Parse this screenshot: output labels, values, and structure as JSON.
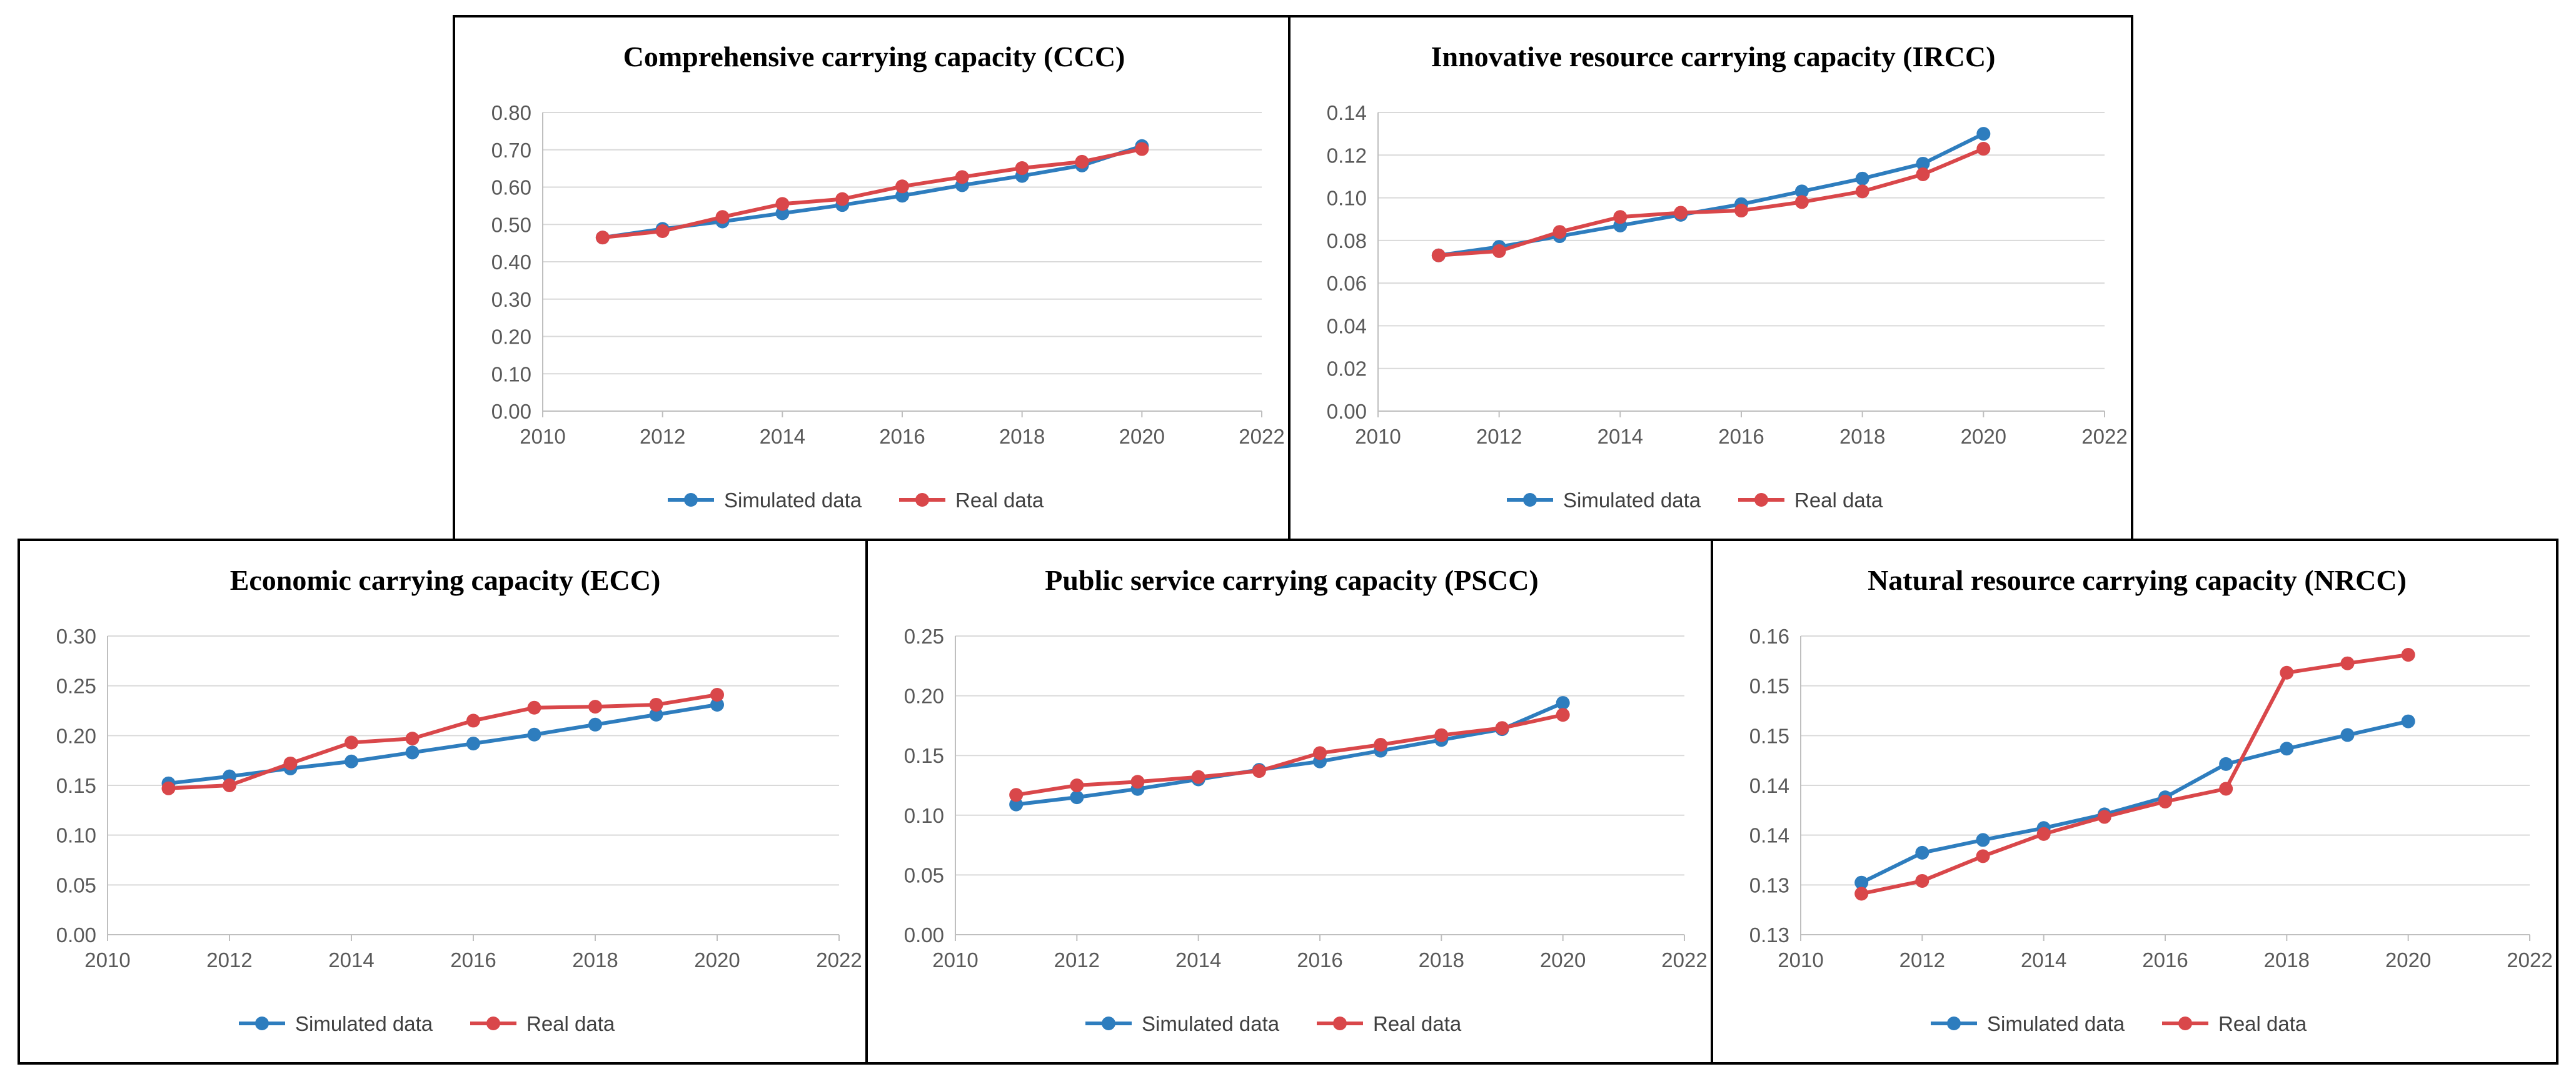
{
  "colors": {
    "simulated": "#2E7DBE",
    "real": "#D9474A",
    "grid": "#D9D9D9",
    "axis": "#BFBFBF"
  },
  "chart_data": [
    {
      "id": "ccc",
      "type": "line",
      "title": "Comprehensive carrying capacity (CCC)",
      "xlim": [
        2010,
        2022
      ],
      "xticks": [
        2010,
        2012,
        2014,
        2016,
        2018,
        2020,
        2022
      ],
      "ylim": [
        0,
        0.8
      ],
      "ytick_labels": [
        "0.00",
        "0.10",
        "0.20",
        "0.30",
        "0.40",
        "0.50",
        "0.60",
        "0.70",
        "0.80"
      ],
      "grid": true,
      "legend": "bottom",
      "x": [
        2011,
        2012,
        2013,
        2014,
        2015,
        2016,
        2017,
        2018,
        2019,
        2020
      ],
      "series": [
        {
          "name": "Simulated data",
          "values": [
            0.465,
            0.488,
            0.508,
            0.53,
            0.552,
            0.577,
            0.605,
            0.63,
            0.658,
            0.71
          ]
        },
        {
          "name": "Real data",
          "values": [
            0.465,
            0.482,
            0.52,
            0.555,
            0.568,
            0.602,
            0.627,
            0.651,
            0.668,
            0.702
          ]
        }
      ]
    },
    {
      "id": "ircc",
      "type": "line",
      "title": "Innovative resource carrying capacity (IRCC)",
      "xlim": [
        2010,
        2022
      ],
      "xticks": [
        2010,
        2012,
        2014,
        2016,
        2018,
        2020,
        2022
      ],
      "ylim": [
        0,
        0.14
      ],
      "ytick_labels": [
        "0.00",
        "0.02",
        "0.04",
        "0.06",
        "0.08",
        "0.10",
        "0.12",
        "0.14"
      ],
      "grid": true,
      "legend": "bottom",
      "x": [
        2011,
        2012,
        2013,
        2014,
        2015,
        2016,
        2017,
        2018,
        2019,
        2020
      ],
      "series": [
        {
          "name": "Simulated data",
          "values": [
            0.073,
            0.077,
            0.082,
            0.087,
            0.092,
            0.097,
            0.103,
            0.109,
            0.116,
            0.13
          ]
        },
        {
          "name": "Real data",
          "values": [
            0.073,
            0.075,
            0.084,
            0.091,
            0.093,
            0.094,
            0.098,
            0.103,
            0.111,
            0.123
          ]
        }
      ]
    },
    {
      "id": "ecc",
      "type": "line",
      "title": "Economic carrying capacity (ECC)",
      "xlim": [
        2010,
        2022
      ],
      "xticks": [
        2010,
        2012,
        2014,
        2016,
        2018,
        2020,
        2022
      ],
      "ylim": [
        0,
        0.3
      ],
      "ytick_labels": [
        "0.00",
        "0.05",
        "0.10",
        "0.15",
        "0.20",
        "0.25",
        "0.30"
      ],
      "grid": true,
      "legend": "bottom",
      "x": [
        2011,
        2012,
        2013,
        2014,
        2015,
        2016,
        2017,
        2018,
        2019,
        2020
      ],
      "series": [
        {
          "name": "Simulated data",
          "values": [
            0.152,
            0.159,
            0.167,
            0.174,
            0.183,
            0.192,
            0.201,
            0.211,
            0.221,
            0.231
          ]
        },
        {
          "name": "Real data",
          "values": [
            0.147,
            0.15,
            0.172,
            0.193,
            0.197,
            0.215,
            0.228,
            0.229,
            0.231,
            0.241
          ]
        }
      ]
    },
    {
      "id": "pscc",
      "type": "line",
      "title": "Public service carrying capacity (PSCC)",
      "xlim": [
        2010,
        2022
      ],
      "xticks": [
        2010,
        2012,
        2014,
        2016,
        2018,
        2020,
        2022
      ],
      "ylim": [
        0,
        0.25
      ],
      "ytick_labels": [
        "0.00",
        "0.05",
        "0.10",
        "0.15",
        "0.20",
        "0.25"
      ],
      "grid": true,
      "legend": "bottom",
      "x": [
        2011,
        2012,
        2013,
        2014,
        2015,
        2016,
        2017,
        2018,
        2019,
        2020
      ],
      "series": [
        {
          "name": "Simulated data",
          "values": [
            0.109,
            0.115,
            0.122,
            0.13,
            0.138,
            0.145,
            0.154,
            0.163,
            0.172,
            0.194
          ]
        },
        {
          "name": "Real data",
          "values": [
            0.117,
            0.125,
            0.128,
            0.132,
            0.137,
            0.152,
            0.159,
            0.167,
            0.173,
            0.184
          ]
        }
      ]
    },
    {
      "id": "nrcc",
      "type": "line",
      "title": "Natural resource carrying capacity (NRCC)",
      "xlim": [
        2010,
        2022
      ],
      "xticks": [
        2010,
        2012,
        2014,
        2016,
        2018,
        2020,
        2022
      ],
      "ylim": [
        0.125,
        0.16
      ],
      "ytick_labels": [
        "0.13",
        "0.13",
        "0.14",
        "0.14",
        "0.15",
        "0.15",
        "0.16"
      ],
      "grid": true,
      "legend": "bottom",
      "x": [
        2011,
        2012,
        2013,
        2014,
        2015,
        2016,
        2017,
        2018,
        2019,
        2020
      ],
      "series": [
        {
          "name": "Simulated data",
          "values": [
            0.1311,
            0.1346,
            0.1361,
            0.1375,
            0.1391,
            0.1411,
            0.145,
            0.1468,
            0.1484,
            0.15
          ]
        },
        {
          "name": "Real data",
          "values": [
            0.1298,
            0.1313,
            0.1342,
            0.1368,
            0.1388,
            0.1406,
            0.1421,
            0.1557,
            0.1568,
            0.1578
          ]
        }
      ]
    }
  ]
}
